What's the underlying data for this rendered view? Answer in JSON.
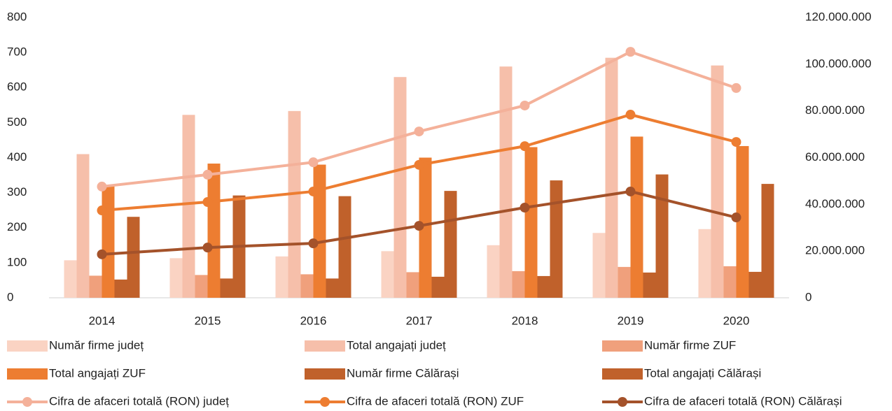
{
  "chart_data": {
    "type": "bar",
    "categories": [
      "2014",
      "2015",
      "2016",
      "2017",
      "2018",
      "2019",
      "2020"
    ],
    "ylim": [
      0,
      800
    ],
    "yticks": [
      0,
      100,
      200,
      300,
      400,
      500,
      600,
      700,
      800
    ],
    "y2lim": [
      0,
      120000000
    ],
    "y2ticks": [
      0,
      {
        "value": 20000000,
        "label": "20.000.000"
      },
      {
        "value": 40000000,
        "label": "40.000.000"
      },
      {
        "value": 60000000,
        "label": "60.000.000"
      },
      {
        "value": 80000000,
        "label": "80.000.000"
      },
      {
        "value": 100000000,
        "label": "100.000.000"
      },
      {
        "value": 120000000,
        "label": "120.000.000"
      }
    ],
    "series": [
      {
        "name": "Număr firme județ",
        "type": "bar",
        "color": "#fad3c3",
        "values": [
          107,
          113,
          118,
          133,
          150,
          185,
          196
        ]
      },
      {
        "name": "Total angajați județ",
        "type": "bar",
        "color": "#f6bfaa",
        "values": [
          410,
          522,
          533,
          630,
          660,
          685,
          663
        ]
      },
      {
        "name": "Număr firme ZUF",
        "type": "bar",
        "color": "#f0a07c",
        "values": [
          63,
          65,
          67,
          73,
          76,
          88,
          90
        ]
      },
      {
        "name": "Total angajați ZUF",
        "type": "bar",
        "color": "#ed7d31",
        "values": [
          322,
          383,
          380,
          400,
          430,
          460,
          433
        ]
      },
      {
        "name": "Număr firme Călărași",
        "type": "bar",
        "color": "#c0612b",
        "values": [
          52,
          55,
          55,
          60,
          62,
          72,
          74
        ]
      },
      {
        "name": "Total angajați Călărași",
        "type": "bar",
        "color": "#c0612b",
        "values": [
          231,
          292,
          290,
          305,
          335,
          352,
          325
        ]
      },
      {
        "name": "Cifra de afaceri totală (RON) județ",
        "type": "line",
        "axis": "y2",
        "color": "#f4b19a",
        "values": [
          47600000,
          52700000,
          58000000,
          71200000,
          82300000,
          105300000,
          89800000
        ]
      },
      {
        "name": "Cifra de afaceri totală (RON) ZUF",
        "type": "line",
        "axis": "y2",
        "color": "#ed7d31",
        "values": [
          37400000,
          41000000,
          45500000,
          56900000,
          64900000,
          78400000,
          66700000
        ]
      },
      {
        "name": "Cifra de afaceri totală (RON) Călărași",
        "type": "line",
        "axis": "y2",
        "color": "#a4522a",
        "values": [
          18600000,
          21500000,
          23300000,
          30800000,
          38600000,
          45500000,
          34400000
        ]
      }
    ]
  }
}
